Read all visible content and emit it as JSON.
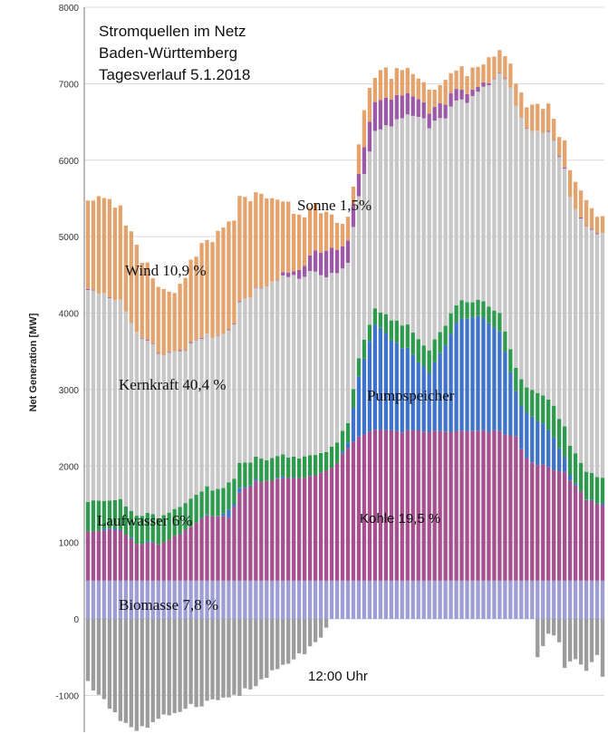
{
  "chart_data": {
    "type": "stacked-bar",
    "title_lines": [
      "Stromquellen im Netz",
      "Baden-Württemberg",
      "Tagesverlauf 5.1.2018"
    ],
    "xlabel": "12:00 Uhr",
    "ylabel": "Net Generation [MW]",
    "ylim": [
      -1500,
      8000
    ],
    "yticks": [
      -1000,
      0,
      1000,
      2000,
      3000,
      4000,
      5000,
      6000,
      7000,
      8000
    ],
    "grid": true,
    "categories_count": 96,
    "stack_order": [
      "Biomasse",
      "Kohle",
      "Pumpspeicher",
      "Laufwasser",
      "Kernkraft",
      "Sonne",
      "Wind"
    ],
    "series_labels": [
      {
        "text": "Wind 10,9 %",
        "series": "Wind"
      },
      {
        "text": "Sonne 1,5%",
        "series": "Sonne"
      },
      {
        "text": "Kernkraft 40,4 %",
        "series": "Kernkraft"
      },
      {
        "text": "Pumpspeicher",
        "series": "Pumpspeicher"
      },
      {
        "text": "Laufwasser 6%",
        "series": "Laufwasser"
      },
      {
        "text": "Kohle 19,5 %",
        "series": "Kohle"
      },
      {
        "text": "Biomasse 7,8 %",
        "series": "Biomasse"
      }
    ],
    "colors": {
      "Biomasse": "#9e9ed6",
      "Kohle": "#a6508f",
      "Pumpspeicher": "#3f73c9",
      "Laufwasser": "#2e9a4d",
      "Kernkraft": "#c7c7c7",
      "Sonne": "#9b59a8",
      "Wind": "#e4a36d",
      "Export": "#9c9c9c",
      "grid": "#d9d9d9",
      "axis": "#777777"
    },
    "profiles": {
      "Biomasse": [
        [
          0,
          500
        ],
        [
          96,
          500
        ]
      ],
      "Kohle": [
        [
          0,
          660
        ],
        [
          6,
          660
        ],
        [
          9,
          480
        ],
        [
          14,
          490
        ],
        [
          18,
          650
        ],
        [
          22,
          870
        ],
        [
          26,
          820
        ],
        [
          28,
          1150
        ],
        [
          31,
          1300
        ],
        [
          34,
          1320
        ],
        [
          40,
          1350
        ],
        [
          45,
          1460
        ],
        [
          48,
          1730
        ],
        [
          50,
          1880
        ],
        [
          53,
          1990
        ],
        [
          56,
          1950
        ],
        [
          60,
          1950
        ],
        [
          64,
          1950
        ],
        [
          70,
          1950
        ],
        [
          76,
          1950
        ],
        [
          79,
          1870
        ],
        [
          81,
          1590
        ],
        [
          84,
          1500
        ],
        [
          88,
          1400
        ],
        [
          92,
          1070
        ],
        [
          96,
          950
        ]
      ],
      "Pumpspeicher": [
        [
          0,
          0
        ],
        [
          23,
          0
        ],
        [
          26,
          80
        ],
        [
          28,
          40
        ],
        [
          30,
          0
        ],
        [
          46,
          0
        ],
        [
          48,
          80
        ],
        [
          50,
          800
        ],
        [
          53,
          1370
        ],
        [
          56,
          1200
        ],
        [
          60,
          1000
        ],
        [
          63,
          750
        ],
        [
          65,
          1000
        ],
        [
          68,
          1400
        ],
        [
          70,
          1500
        ],
        [
          72,
          1500
        ],
        [
          74,
          1400
        ],
        [
          76,
          1300
        ],
        [
          79,
          600
        ],
        [
          81,
          600
        ],
        [
          84,
          550
        ],
        [
          86,
          400
        ],
        [
          88,
          200
        ],
        [
          90,
          0
        ],
        [
          96,
          0
        ]
      ],
      "Laufwasser": [
        [
          0,
          400
        ],
        [
          4,
          380
        ],
        [
          8,
          370
        ],
        [
          12,
          360
        ],
        [
          16,
          360
        ],
        [
          20,
          350
        ],
        [
          24,
          340
        ],
        [
          28,
          330
        ],
        [
          32,
          290
        ],
        [
          38,
          270
        ],
        [
          44,
          260
        ],
        [
          48,
          260
        ],
        [
          50,
          250
        ],
        [
          54,
          210
        ],
        [
          56,
          280
        ],
        [
          60,
          290
        ],
        [
          63,
          290
        ],
        [
          66,
          270
        ],
        [
          70,
          210
        ],
        [
          74,
          210
        ],
        [
          78,
          300
        ],
        [
          82,
          360
        ],
        [
          86,
          400
        ],
        [
          90,
          380
        ],
        [
          96,
          350
        ]
      ],
      "Kernkraft": [
        [
          0,
          2800
        ],
        [
          6,
          2600
        ],
        [
          10,
          2300
        ],
        [
          14,
          2100
        ],
        [
          18,
          2020
        ],
        [
          22,
          1980
        ],
        [
          26,
          2000
        ],
        [
          30,
          2150
        ],
        [
          34,
          2300
        ],
        [
          38,
          2350
        ],
        [
          42,
          2400
        ],
        [
          46,
          2200
        ],
        [
          48,
          2100
        ],
        [
          50,
          2100
        ],
        [
          54,
          2400
        ],
        [
          58,
          2700
        ],
        [
          62,
          3000
        ],
        [
          66,
          2700
        ],
        [
          70,
          2600
        ],
        [
          74,
          2900
        ],
        [
          78,
          3400
        ],
        [
          82,
          3400
        ],
        [
          86,
          3500
        ],
        [
          90,
          3200
        ],
        [
          94,
          3200
        ],
        [
          96,
          3200
        ]
      ],
      "Sonne": [
        [
          0,
          0
        ],
        [
          34,
          0
        ],
        [
          36,
          30
        ],
        [
          38,
          60
        ],
        [
          40,
          150
        ],
        [
          42,
          270
        ],
        [
          44,
          330
        ],
        [
          46,
          310
        ],
        [
          48,
          280
        ],
        [
          50,
          300
        ],
        [
          52,
          380
        ],
        [
          54,
          370
        ],
        [
          56,
          350
        ],
        [
          58,
          300
        ],
        [
          60,
          250
        ],
        [
          62,
          200
        ],
        [
          64,
          190
        ],
        [
          66,
          180
        ],
        [
          70,
          120
        ],
        [
          72,
          60
        ],
        [
          74,
          30
        ],
        [
          76,
          0
        ],
        [
          96,
          0
        ]
      ],
      "Wind": [
        [
          0,
          1200
        ],
        [
          4,
          1250
        ],
        [
          8,
          1150
        ],
        [
          12,
          900
        ],
        [
          16,
          740
        ],
        [
          18,
          920
        ],
        [
          21,
          1220
        ],
        [
          24,
          1350
        ],
        [
          28,
          1400
        ],
        [
          32,
          1230
        ],
        [
          36,
          950
        ],
        [
          40,
          650
        ],
        [
          44,
          540
        ],
        [
          47,
          350
        ],
        [
          49,
          250
        ],
        [
          51,
          450
        ],
        [
          53,
          370
        ],
        [
          56,
          330
        ],
        [
          60,
          300
        ],
        [
          62,
          290
        ],
        [
          64,
          280
        ],
        [
          66,
          270
        ],
        [
          68,
          280
        ],
        [
          70,
          220
        ],
        [
          72,
          260
        ],
        [
          74,
          300
        ],
        [
          76,
          330
        ],
        [
          78,
          360
        ],
        [
          80,
          330
        ],
        [
          82,
          330
        ],
        [
          86,
          300
        ],
        [
          90,
          300
        ],
        [
          94,
          270
        ],
        [
          96,
          270
        ]
      ],
      "Export": [
        [
          0,
          -850
        ],
        [
          3,
          -1050
        ],
        [
          6,
          -1320
        ],
        [
          9,
          -1450
        ],
        [
          12,
          -1380
        ],
        [
          15,
          -1250
        ],
        [
          18,
          -1150
        ],
        [
          21,
          -1100
        ],
        [
          24,
          -1060
        ],
        [
          27,
          -1000
        ],
        [
          30,
          -920
        ],
        [
          33,
          -760
        ],
        [
          36,
          -620
        ],
        [
          39,
          -480
        ],
        [
          42,
          -330
        ],
        [
          44,
          -150
        ],
        [
          45,
          0
        ],
        [
          82,
          0
        ],
        [
          83,
          -500
        ],
        [
          85,
          -200
        ],
        [
          87,
          -300
        ],
        [
          88,
          -650
        ],
        [
          90,
          -500
        ],
        [
          92,
          -700
        ],
        [
          94,
          -450
        ],
        [
          96,
          -1100
        ]
      ]
    }
  }
}
